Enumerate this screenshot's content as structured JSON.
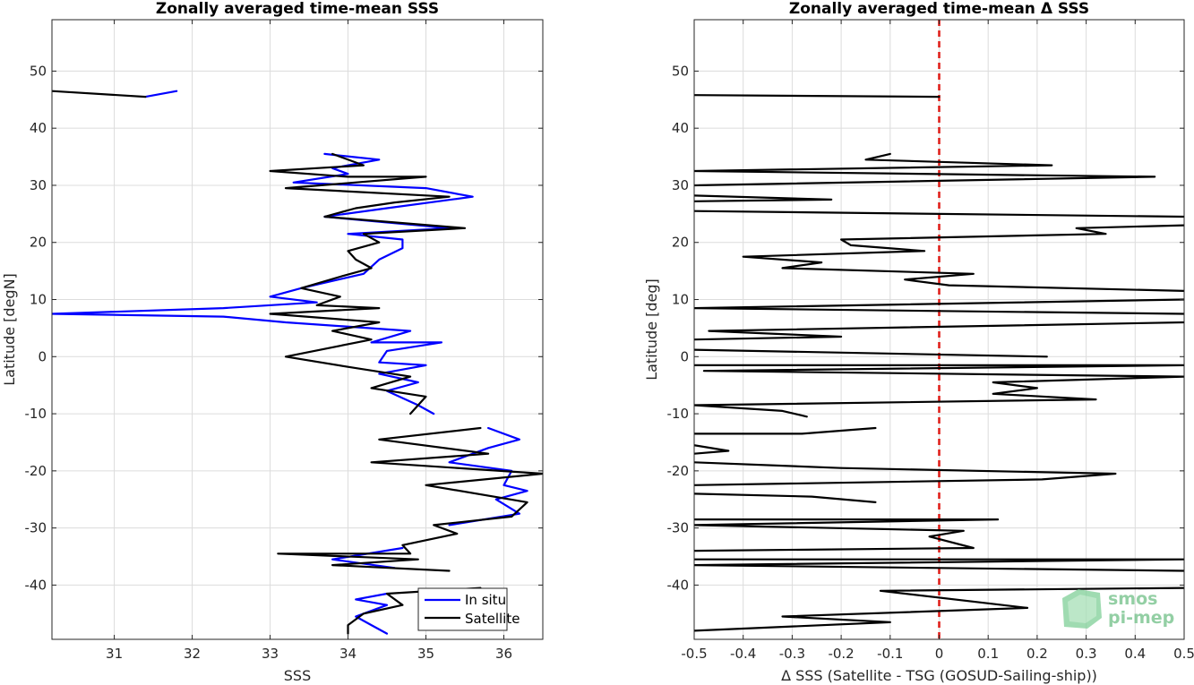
{
  "chart_data": [
    {
      "type": "line",
      "title": "Zonally averaged time-mean SSS",
      "xlabel": "SSS",
      "ylabel": "Latitude [degN]",
      "xlim": [
        30.2,
        36.5
      ],
      "ylim": [
        -49.5,
        59
      ],
      "xticks": [
        31,
        32,
        33,
        34,
        35,
        36
      ],
      "yticks": [
        -40,
        -30,
        -20,
        -10,
        0,
        10,
        20,
        30,
        40,
        50
      ],
      "xtick_labels": [
        "31",
        "32",
        "33",
        "34",
        "35",
        "36"
      ],
      "ytick_labels": [
        "-40",
        "-30",
        "-20",
        "-10",
        "0",
        "10",
        "20",
        "30",
        "40",
        "50"
      ],
      "grid": true,
      "legend": {
        "position": "bottom-right",
        "entries": [
          "In situ",
          "Satellite"
        ]
      },
      "series": [
        {
          "name": "In situ",
          "color": "#0000ff",
          "segments": [
            [
              [
                31.4,
                45.5
              ],
              [
                31.8,
                46.5
              ]
            ],
            [
              [
                33.7,
                35.5
              ],
              [
                34.4,
                34.5
              ],
              [
                33.8,
                33
              ],
              [
                34.0,
                32
              ],
              [
                33.3,
                30.5
              ],
              [
                35.0,
                29.5
              ],
              [
                35.6,
                28
              ],
              [
                34.5,
                26
              ],
              [
                33.7,
                24.5
              ],
              [
                35.3,
                22.5
              ],
              [
                34.0,
                21.5
              ],
              [
                34.7,
                20.5
              ],
              [
                34.7,
                19
              ],
              [
                34.4,
                17
              ],
              [
                34.2,
                14.5
              ],
              [
                33.4,
                12
              ],
              [
                33.0,
                10.5
              ],
              [
                33.6,
                9.5
              ],
              [
                32.4,
                8.5
              ],
              [
                30.2,
                7.5
              ],
              [
                32.4,
                7
              ],
              [
                33.2,
                6
              ],
              [
                34.8,
                4.5
              ],
              [
                34.3,
                2.5
              ],
              [
                35.2,
                2.5
              ],
              [
                34.5,
                1
              ],
              [
                34.4,
                -1
              ],
              [
                35.0,
                -1.5
              ],
              [
                34.4,
                -3
              ],
              [
                34.9,
                -4.5
              ],
              [
                34.5,
                -6
              ],
              [
                34.9,
                -8.5
              ],
              [
                35.1,
                -10
              ]
            ],
            [
              [
                35.8,
                -12.5
              ],
              [
                36.2,
                -14.5
              ],
              [
                35.8,
                -16
              ],
              [
                35.3,
                -18.5
              ],
              [
                36.1,
                -20
              ],
              [
                36.0,
                -22.5
              ],
              [
                36.3,
                -23.5
              ],
              [
                35.9,
                -25
              ],
              [
                36.2,
                -27.5
              ],
              [
                35.3,
                -29.5
              ]
            ],
            [
              [
                34.7,
                -33.5
              ],
              [
                33.8,
                -35.5
              ],
              [
                34.6,
                -37
              ]
            ],
            [
              [
                34.5,
                -41.5
              ],
              [
                34.1,
                -42.5
              ],
              [
                34.5,
                -43.5
              ],
              [
                34.1,
                -45.5
              ],
              [
                34.3,
                -47
              ],
              [
                34.5,
                -48.5
              ]
            ]
          ]
        },
        {
          "name": "Satellite",
          "color": "#000000",
          "segments": [
            [
              [
                30.2,
                46.5
              ],
              [
                31.4,
                45.5
              ]
            ],
            [
              [
                33.8,
                35.5
              ],
              [
                34.2,
                33.5
              ],
              [
                33.0,
                32.5
              ],
              [
                34.0,
                31.5
              ],
              [
                35.0,
                31.5
              ],
              [
                33.2,
                29.5
              ],
              [
                35.3,
                28
              ],
              [
                34.6,
                27
              ],
              [
                34.1,
                26
              ],
              [
                33.7,
                24.5
              ],
              [
                35.5,
                22.5
              ],
              [
                34.2,
                21.5
              ],
              [
                34.4,
                20
              ],
              [
                34.0,
                18.5
              ],
              [
                34.1,
                17
              ],
              [
                34.3,
                15.5
              ],
              [
                33.9,
                14
              ],
              [
                33.4,
                12
              ],
              [
                33.9,
                10.5
              ],
              [
                33.6,
                9
              ],
              [
                34.4,
                8.5
              ],
              [
                33.0,
                7.5
              ],
              [
                34.4,
                6
              ],
              [
                33.8,
                4.5
              ],
              [
                34.3,
                3
              ],
              [
                33.2,
                0
              ],
              [
                34.1,
                -2
              ],
              [
                34.8,
                -3.5
              ],
              [
                34.3,
                -5.5
              ],
              [
                35.0,
                -7
              ],
              [
                34.8,
                -10
              ]
            ],
            [
              [
                35.7,
                -12.5
              ],
              [
                34.4,
                -14.5
              ],
              [
                35.8,
                -17
              ],
              [
                34.3,
                -18.5
              ],
              [
                36.5,
                -20.5
              ],
              [
                35.0,
                -22.5
              ],
              [
                36.3,
                -25.5
              ],
              [
                36.1,
                -28
              ],
              [
                35.1,
                -29.5
              ],
              [
                35.4,
                -31
              ],
              [
                34.7,
                -33
              ],
              [
                34.8,
                -34.5
              ],
              [
                33.1,
                -34.5
              ],
              [
                34.9,
                -35.5
              ],
              [
                33.8,
                -36.5
              ],
              [
                35.3,
                -37.5
              ]
            ],
            [
              [
                35.7,
                -40.5
              ],
              [
                34.5,
                -41.5
              ],
              [
                34.7,
                -43.5
              ],
              [
                34.2,
                -45
              ],
              [
                34.0,
                -47
              ],
              [
                34.0,
                -48.5
              ]
            ]
          ]
        }
      ]
    },
    {
      "type": "line",
      "title": "Zonally averaged time-mean Δ SSS",
      "xlabel": "Δ SSS (Satellite - TSG (GOSUD-Sailing-ship))",
      "ylabel": "Latitude [deg]",
      "xlim": [
        -0.5,
        0.5
      ],
      "ylim": [
        -49.5,
        59
      ],
      "xticks": [
        -0.5,
        -0.4,
        -0.3,
        -0.2,
        -0.1,
        0,
        0.1,
        0.2,
        0.3,
        0.4,
        0.5
      ],
      "yticks": [
        -40,
        -30,
        -20,
        -10,
        0,
        10,
        20,
        30,
        40,
        50
      ],
      "xtick_labels": [
        "-0.5",
        "-0.4",
        "-0.3",
        "-0.2",
        "-0.1",
        "0",
        "0.1",
        "0.2",
        "0.3",
        "0.4",
        "0.5"
      ],
      "ytick_labels": [
        "-40",
        "-30",
        "-20",
        "-10",
        "0",
        "10",
        "20",
        "30",
        "40",
        "50"
      ],
      "grid": true,
      "reference_line": {
        "x": 0,
        "color": "#e0201b",
        "style": "dashed"
      },
      "series": [
        {
          "name": "",
          "color": "#000000",
          "segments": [
            [
              [
                -0.5,
                45.8
              ],
              [
                0.0,
                45.5
              ]
            ],
            [
              [
                -0.1,
                35.5
              ],
              [
                -0.15,
                34.5
              ],
              [
                0.23,
                33.5
              ],
              [
                -0.5,
                32.5
              ],
              [
                0.44,
                31.5
              ],
              [
                -0.5,
                30
              ]
            ],
            [
              [
                -0.5,
                28.2
              ],
              [
                -0.22,
                27.5
              ],
              [
                -0.5,
                27.2
              ]
            ],
            [
              [
                -0.5,
                25.5
              ],
              [
                0.5,
                24.5
              ]
            ],
            [
              [
                0.5,
                23
              ],
              [
                0.28,
                22.5
              ],
              [
                0.34,
                21.5
              ],
              [
                -0.2,
                20.5
              ],
              [
                -0.18,
                19.5
              ],
              [
                -0.03,
                18.5
              ],
              [
                -0.4,
                17.5
              ],
              [
                -0.24,
                16.5
              ],
              [
                -0.32,
                15.5
              ],
              [
                0.07,
                14.5
              ],
              [
                -0.07,
                13.5
              ],
              [
                0.02,
                12.5
              ],
              [
                0.5,
                11.5
              ]
            ],
            [
              [
                0.5,
                10
              ],
              [
                -0.5,
                8.5
              ],
              [
                0.5,
                7.5
              ]
            ],
            [
              [
                0.5,
                6
              ],
              [
                -0.47,
                4.5
              ],
              [
                -0.2,
                3.5
              ],
              [
                -0.5,
                3
              ]
            ],
            [
              [
                -0.5,
                1.2
              ],
              [
                0.22,
                0
              ]
            ],
            [
              [
                -0.5,
                -1.5
              ],
              [
                0.5,
                -1.5
              ],
              [
                -0.48,
                -2.5
              ],
              [
                0.5,
                -3.5
              ],
              [
                0.11,
                -4.5
              ],
              [
                0.2,
                -5.5
              ],
              [
                0.11,
                -6.5
              ],
              [
                0.32,
                -7.5
              ],
              [
                -0.5,
                -8.5
              ],
              [
                -0.32,
                -9.5
              ],
              [
                -0.27,
                -10.5
              ]
            ],
            [
              [
                -0.5,
                -13.5
              ],
              [
                -0.28,
                -13.5
              ],
              [
                -0.13,
                -12.5
              ]
            ],
            [
              [
                -0.5,
                -15.5
              ],
              [
                -0.43,
                -16.5
              ],
              [
                -0.5,
                -17
              ]
            ],
            [
              [
                -0.5,
                -18.5
              ],
              [
                -0.2,
                -19.5
              ],
              [
                0.36,
                -20.5
              ],
              [
                0.21,
                -21.5
              ],
              [
                -0.5,
                -22.5
              ]
            ],
            [
              [
                -0.5,
                -24
              ],
              [
                -0.26,
                -24.5
              ],
              [
                -0.13,
                -25.5
              ]
            ],
            [
              [
                -0.5,
                -28.5
              ],
              [
                0.12,
                -28.5
              ],
              [
                -0.5,
                -29.5
              ],
              [
                0.05,
                -30.5
              ],
              [
                -0.02,
                -31.5
              ],
              [
                0.07,
                -33.5
              ],
              [
                -0.5,
                -34
              ]
            ],
            [
              [
                -0.5,
                -35.5
              ],
              [
                0.5,
                -35.5
              ],
              [
                -0.5,
                -36.5
              ],
              [
                0.5,
                -37.5
              ]
            ],
            [
              [
                0.5,
                -40.5
              ],
              [
                -0.12,
                -41
              ],
              [
                0.18,
                -44
              ],
              [
                -0.32,
                -45.5
              ],
              [
                -0.1,
                -46.5
              ],
              [
                -0.5,
                -48
              ]
            ]
          ]
        }
      ]
    }
  ],
  "logo": {
    "line1": "smos",
    "line2": "pi-mep"
  }
}
